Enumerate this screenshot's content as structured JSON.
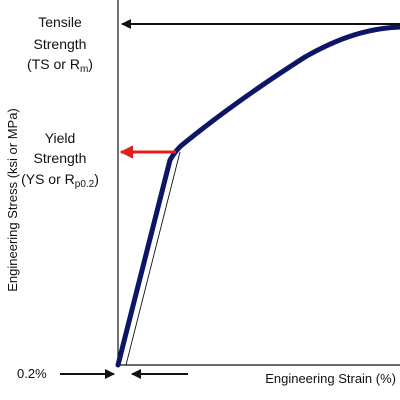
{
  "chart_data": {
    "type": "line",
    "title": "",
    "xlabel": "Engineering Strain (%)",
    "ylabel": "Engineering Stress (ksi or MPa)",
    "annotations": {
      "tensile_strength": {
        "lines": [
          {
            "text": "Tensile"
          },
          {
            "text": "Strength"
          },
          {
            "text": "(TS or R",
            "sub": "m",
            "tail": ")"
          }
        ]
      },
      "yield_strength": {
        "lines": [
          {
            "text": "Yield"
          },
          {
            "text": "Strength"
          },
          {
            "text": "(YS or R",
            "sub": "p0.2",
            "tail": ")"
          }
        ]
      },
      "offset": "0.2%"
    },
    "colors": {
      "curve": "#0d1566",
      "yield_arrow": "#e0201b",
      "ink": "#111111"
    }
  }
}
